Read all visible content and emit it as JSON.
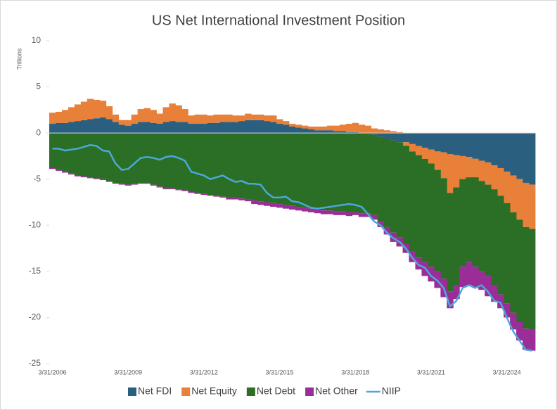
{
  "chart_data": {
    "type": "bar",
    "stacked": true,
    "title": "US Net International Investment Position",
    "ylabel": "Trillions",
    "categories": [
      "3/31/2006",
      null,
      null,
      null,
      null,
      null,
      null,
      null,
      null,
      null,
      null,
      null,
      "3/31/2009",
      null,
      null,
      null,
      null,
      null,
      null,
      null,
      null,
      null,
      null,
      null,
      "3/31/2012",
      null,
      null,
      null,
      null,
      null,
      null,
      null,
      null,
      null,
      null,
      null,
      "3/31/2015",
      null,
      null,
      null,
      null,
      null,
      null,
      null,
      null,
      null,
      null,
      null,
      "3/31/2018",
      null,
      null,
      null,
      null,
      null,
      null,
      null,
      null,
      null,
      null,
      null,
      "3/31/2021",
      null,
      null,
      null,
      null,
      null,
      null,
      null,
      null,
      null,
      null,
      null,
      "3/31/2024",
      null,
      null,
      null,
      null
    ],
    "ylim": [
      -25,
      10
    ],
    "yticks": [
      10,
      5,
      0,
      -5,
      -10,
      -15,
      -20,
      -25
    ],
    "grid": false,
    "series": [
      {
        "name": "Net FDI",
        "color": "#2a5f80",
        "values": [
          1.0,
          1.1,
          1.1,
          1.2,
          1.3,
          1.4,
          1.5,
          1.6,
          1.7,
          1.5,
          1.2,
          0.9,
          0.8,
          1.0,
          1.2,
          1.2,
          1.1,
          1.0,
          1.2,
          1.3,
          1.2,
          1.2,
          1.0,
          1.0,
          1.0,
          1.1,
          1.1,
          1.2,
          1.2,
          1.2,
          1.3,
          1.4,
          1.4,
          1.4,
          1.3,
          1.2,
          1.0,
          0.9,
          0.7,
          0.6,
          0.5,
          0.4,
          0.3,
          0.3,
          0.3,
          0.2,
          0.2,
          0.1,
          0.1,
          0.0,
          -0.1,
          -0.2,
          -0.4,
          -0.6,
          -0.8,
          -1.0,
          -1.0,
          -1.2,
          -1.4,
          -1.6,
          -1.8,
          -2.0,
          -2.1,
          -2.3,
          -2.4,
          -2.5,
          -2.6,
          -2.8,
          -3.0,
          -3.2,
          -3.5,
          -3.8,
          -4.2,
          -4.6,
          -5.0,
          -5.4,
          -5.6
        ]
      },
      {
        "name": "Net Equity",
        "color": "#e8803a",
        "values": [
          1.2,
          1.2,
          1.4,
          1.6,
          1.8,
          2.0,
          2.2,
          2.0,
          1.8,
          1.4,
          0.8,
          0.5,
          0.6,
          1.0,
          1.4,
          1.5,
          1.4,
          1.1,
          1.6,
          1.9,
          1.8,
          1.4,
          0.9,
          1.0,
          1.0,
          0.8,
          0.9,
          0.8,
          0.8,
          0.7,
          0.6,
          0.7,
          0.6,
          0.6,
          0.6,
          0.7,
          0.5,
          0.4,
          0.3,
          0.3,
          0.3,
          0.3,
          0.4,
          0.4,
          0.5,
          0.6,
          0.7,
          0.9,
          1.0,
          0.9,
          0.8,
          0.5,
          0.4,
          0.3,
          0.2,
          0.1,
          -0.4,
          -0.8,
          -1.0,
          -1.2,
          -1.5,
          -2.0,
          -2.8,
          -4.2,
          -3.5,
          -2.5,
          -2.2,
          -2.0,
          -2.2,
          -2.4,
          -2.6,
          -3.0,
          -3.4,
          -4.0,
          -4.4,
          -4.8,
          -4.8
        ]
      },
      {
        "name": "Net Debt",
        "color": "#2b6e25",
        "values": [
          -3.8,
          -4.0,
          -4.2,
          -4.4,
          -4.6,
          -4.7,
          -4.8,
          -4.9,
          -5.0,
          -5.2,
          -5.4,
          -5.5,
          -5.6,
          -5.5,
          -5.4,
          -5.4,
          -5.6,
          -5.8,
          -6.0,
          -6.0,
          -6.1,
          -6.2,
          -6.4,
          -6.5,
          -6.6,
          -6.7,
          -6.8,
          -6.9,
          -7.0,
          -7.0,
          -7.1,
          -7.2,
          -7.3,
          -7.4,
          -7.5,
          -7.6,
          -7.7,
          -7.8,
          -7.9,
          -8.0,
          -8.1,
          -8.2,
          -8.3,
          -8.4,
          -8.4,
          -8.5,
          -8.5,
          -8.6,
          -8.6,
          -8.7,
          -8.6,
          -8.7,
          -9.2,
          -9.6,
          -10.0,
          -10.3,
          -10.6,
          -10.8,
          -11.1,
          -11.2,
          -11.2,
          -11.0,
          -10.9,
          -10.7,
          -10.6,
          -9.5,
          -9.2,
          -9.7,
          -9.8,
          -9.9,
          -10.4,
          -10.7,
          -10.9,
          -10.9,
          -11.1,
          -11.0,
          -10.9
        ]
      },
      {
        "name": "Net Other",
        "color": "#9b2d99",
        "values": [
          -0.1,
          -0.1,
          -0.1,
          -0.1,
          -0.1,
          -0.1,
          -0.1,
          -0.1,
          -0.1,
          -0.1,
          -0.1,
          -0.1,
          -0.1,
          -0.1,
          -0.1,
          -0.1,
          -0.1,
          -0.1,
          -0.1,
          -0.1,
          -0.1,
          -0.1,
          -0.1,
          -0.1,
          -0.1,
          -0.1,
          -0.1,
          -0.1,
          -0.2,
          -0.2,
          -0.2,
          -0.2,
          -0.4,
          -0.4,
          -0.4,
          -0.4,
          -0.4,
          -0.4,
          -0.4,
          -0.4,
          -0.4,
          -0.4,
          -0.4,
          -0.4,
          -0.4,
          -0.4,
          -0.4,
          -0.4,
          -0.3,
          -0.4,
          -0.4,
          -0.5,
          -0.6,
          -0.8,
          -1.0,
          -1.0,
          -1.0,
          -1.2,
          -1.3,
          -1.5,
          -1.6,
          -1.8,
          -2.0,
          -1.8,
          -1.5,
          -2.2,
          -2.5,
          -2.3,
          -2.0,
          -2.2,
          -1.8,
          -1.5,
          -1.5,
          -1.8,
          -2.0,
          -2.3,
          -2.3
        ]
      },
      {
        "name": "NIIP",
        "type": "line",
        "color": "#4aa8dc",
        "values": [
          -1.7,
          -1.7,
          -1.9,
          -1.8,
          -1.7,
          -1.5,
          -1.3,
          -1.4,
          -1.9,
          -2.0,
          -3.3,
          -4.0,
          -3.9,
          -3.3,
          -2.7,
          -2.6,
          -2.7,
          -2.9,
          -2.6,
          -2.5,
          -2.7,
          -3.0,
          -4.2,
          -4.4,
          -4.6,
          -5.0,
          -4.8,
          -4.6,
          -5.0,
          -5.3,
          -5.2,
          -5.5,
          -5.5,
          -5.6,
          -6.5,
          -7.0,
          -7.0,
          -6.9,
          -7.4,
          -7.5,
          -7.8,
          -8.1,
          -8.2,
          -8.1,
          -8.0,
          -7.9,
          -7.8,
          -7.7,
          -7.8,
          -8.0,
          -8.8,
          -9.6,
          -10.0,
          -10.8,
          -11.4,
          -11.8,
          -12.5,
          -13.5,
          -14.3,
          -14.6,
          -15.5,
          -16.0,
          -16.8,
          -18.8,
          -18.2,
          -16.8,
          -16.5,
          -16.8,
          -16.5,
          -17.2,
          -18.2,
          -18.4,
          -20.0,
          -21.5,
          -22.5,
          -23.5,
          -23.6
        ]
      }
    ]
  }
}
